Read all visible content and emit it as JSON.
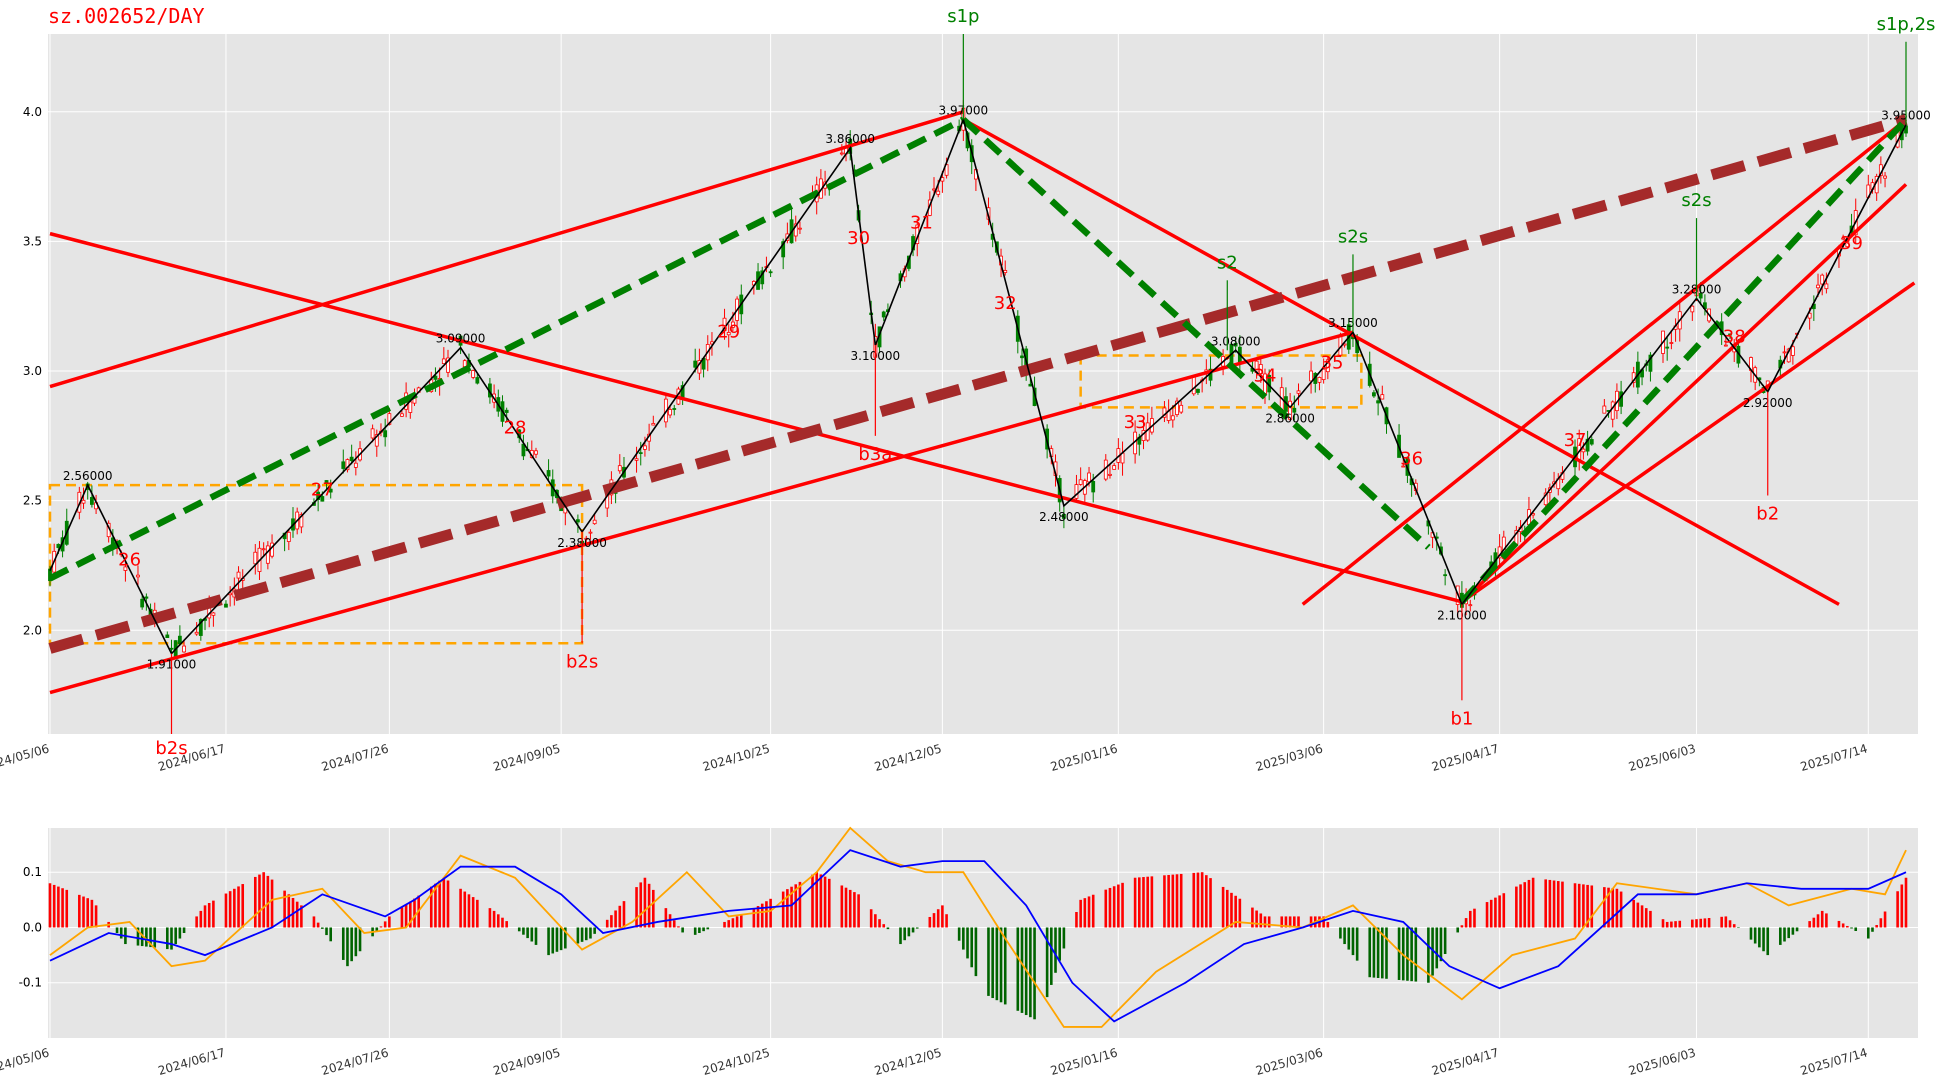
{
  "chart_data": [
    {
      "type": "candlestick",
      "title": "sz.002652/DAY",
      "ylim": [
        1.6,
        4.3
      ],
      "y_ticks": [
        "2.0",
        "2.5",
        "3.0",
        "3.5",
        "4.0"
      ],
      "x_range": [
        "2024/05/06",
        "2025/07/23"
      ],
      "x_ticks": [
        "2024/05/06",
        "2024/06/17",
        "2024/07/26",
        "2024/09/05",
        "2024/10/25",
        "2024/12/05",
        "2025/01/16",
        "2025/03/06",
        "2025/04/17",
        "2025/06/03",
        "2025/07/14"
      ],
      "grid": true,
      "pivots": [
        {
          "date": "2024/05/06",
          "price": 2.23,
          "label": ""
        },
        {
          "date": "2024/05/15",
          "price": 2.56,
          "label": "2.56000"
        },
        {
          "date": "2024/06/04",
          "price": 1.91,
          "label": "1.91000"
        },
        {
          "date": "2024/08/12",
          "price": 3.09,
          "label": "3.09000"
        },
        {
          "date": "2024/09/10",
          "price": 2.38,
          "label": "2.38000"
        },
        {
          "date": "2024/11/13",
          "price": 3.86,
          "label": "3.86000"
        },
        {
          "date": "2024/11/19",
          "price": 3.1,
          "label": "3.10000"
        },
        {
          "date": "2024/12/10",
          "price": 3.97,
          "label": "3.97000"
        },
        {
          "date": "2025/01/03",
          "price": 2.48,
          "label": "2.48000"
        },
        {
          "date": "2025/02/13",
          "price": 3.08,
          "label": "3.08000"
        },
        {
          "date": "2025/02/26",
          "price": 2.86,
          "label": "2.86000"
        },
        {
          "date": "2025/03/13",
          "price": 3.15,
          "label": "3.15000"
        },
        {
          "date": "2025/04/08",
          "price": 2.1,
          "label": "2.10000"
        },
        {
          "date": "2025/06/03",
          "price": 3.28,
          "label": "3.28000"
        },
        {
          "date": "2025/06/20",
          "price": 2.92,
          "label": "2.92000"
        },
        {
          "date": "2025/07/23",
          "price": 3.95,
          "label": "3.95000"
        }
      ],
      "signals": [
        {
          "label": "b2s",
          "date": "2024/06/04",
          "price": 1.6,
          "color": "#ff0000",
          "side": "below"
        },
        {
          "label": "b2s",
          "date": "2024/09/10",
          "price": 1.95,
          "color": "#ff0000",
          "side": "below"
        },
        {
          "label": "b3a",
          "date": "2024/11/19",
          "price": 2.75,
          "color": "#ff0000",
          "side": "below"
        },
        {
          "label": "b1",
          "date": "2025/04/08",
          "price": 1.73,
          "color": "#ff0000",
          "side": "below"
        },
        {
          "label": "b2",
          "date": "2025/06/20",
          "price": 2.52,
          "color": "#ff0000",
          "side": "below"
        },
        {
          "label": "s1p",
          "date": "2024/12/10",
          "price": 4.3,
          "color": "#008000",
          "side": "above"
        },
        {
          "label": "s2",
          "date": "2025/02/11",
          "price": 3.35,
          "color": "#008000",
          "side": "above"
        },
        {
          "label": "s2s",
          "date": "2025/03/13",
          "price": 3.45,
          "color": "#008000",
          "side": "above"
        },
        {
          "label": "s2s",
          "date": "2025/06/03",
          "price": 3.59,
          "color": "#008000",
          "side": "above"
        },
        {
          "label": "s1p,2s",
          "date": "2025/07/23",
          "price": 4.27,
          "color": "#008000",
          "side": "above"
        }
      ],
      "stroke_numbers": [
        {
          "label": "26",
          "date": "2024/05/25",
          "price": 2.25
        },
        {
          "label": "27",
          "date": "2024/07/10",
          "price": 2.52
        },
        {
          "label": "28",
          "date": "2024/08/25",
          "price": 2.76
        },
        {
          "label": "29",
          "date": "2024/10/15",
          "price": 3.13
        },
        {
          "label": "30",
          "date": "2024/11/15",
          "price": 3.49
        },
        {
          "label": "31",
          "date": "2024/11/30",
          "price": 3.55
        },
        {
          "label": "32",
          "date": "2024/12/20",
          "price": 3.24
        },
        {
          "label": "33",
          "date": "2025/01/20",
          "price": 2.78
        },
        {
          "label": "34",
          "date": "2025/02/20",
          "price": 2.96
        },
        {
          "label": "35",
          "date": "2025/03/08",
          "price": 3.01
        },
        {
          "label": "36",
          "date": "2025/03/27",
          "price": 2.64
        },
        {
          "label": "37",
          "date": "2025/05/05",
          "price": 2.71
        },
        {
          "label": "38",
          "date": "2025/06/12",
          "price": 3.11
        },
        {
          "label": "39",
          "date": "2025/07/10",
          "price": 3.47
        }
      ],
      "trend_lines": [
        {
          "from": [
            "2024/05/06",
            2.94
          ],
          "to": [
            "2024/12/10",
            4.0
          ],
          "color": "#ff0000",
          "style": "solid"
        },
        {
          "from": [
            "2024/05/06",
            3.53
          ],
          "to": [
            "2025/04/08",
            2.11
          ],
          "color": "#ff0000",
          "style": "solid"
        },
        {
          "from": [
            "2024/05/06",
            1.76
          ],
          "to": [
            "2025/03/13",
            3.15
          ],
          "color": "#ff0000",
          "style": "solid"
        },
        {
          "from": [
            "2024/12/10",
            3.97
          ],
          "to": [
            "2025/07/07",
            2.1
          ],
          "color": "#ff0000",
          "style": "solid"
        },
        {
          "from": [
            "2025/03/01",
            2.1
          ],
          "to": [
            "2025/07/23",
            3.97
          ],
          "color": "#ff0000",
          "style": "solid"
        },
        {
          "from": [
            "2025/04/08",
            2.11
          ],
          "to": [
            "2025/07/23",
            3.72
          ],
          "color": "#ff0000",
          "style": "solid"
        },
        {
          "from": [
            "2025/04/08",
            2.11
          ],
          "to": [
            "2025/07/25",
            3.34
          ],
          "color": "#ff0000",
          "style": "solid"
        },
        {
          "from": [
            "2024/05/06",
            1.93
          ],
          "to": [
            "2025/07/23",
            3.97
          ],
          "color": "#a52a2a",
          "style": "thick-dash"
        },
        {
          "from": [
            "2024/05/06",
            2.2
          ],
          "to": [
            "2024/12/10",
            3.97
          ],
          "color": "#008000",
          "style": "dash"
        },
        {
          "from": [
            "2024/12/10",
            3.97
          ],
          "to": [
            "2025/03/31",
            2.32
          ],
          "color": "#008000",
          "style": "dash"
        },
        {
          "from": [
            "2025/04/08",
            2.11
          ],
          "to": [
            "2025/07/23",
            3.97
          ],
          "color": "#008000",
          "style": "dash"
        },
        {
          "from": [
            "2025/06/20",
            2.92
          ],
          "to": [
            "2025/07/23",
            3.95
          ],
          "color": "#000000",
          "style": "thin-dash"
        }
      ],
      "zones": [
        {
          "from": [
            "2024/05/06",
            2.56
          ],
          "to": [
            "2024/09/10",
            1.95
          ],
          "color": "#ffa500"
        },
        {
          "from": [
            "2025/01/07",
            3.06
          ],
          "to": [
            "2025/03/15",
            2.86
          ],
          "color": "#ffa500"
        }
      ]
    },
    {
      "type": "macd",
      "ylim": [
        -0.2,
        0.18
      ],
      "y_ticks": [
        "-0.1",
        "0.0",
        "0.1"
      ],
      "x_ticks": [
        "2024/05/06",
        "2024/06/17",
        "2024/07/26",
        "2024/09/05",
        "2024/10/25",
        "2024/12/05",
        "2025/01/16",
        "2025/03/06",
        "2025/04/17",
        "2025/06/03",
        "2025/07/14"
      ],
      "dif_color": "#ffa500",
      "dea_color": "#0000ff",
      "hist_up_color": "#ff0000",
      "hist_down_color": "#006400",
      "dif": [
        [
          "2024/05/06",
          -0.05
        ],
        [
          "2024/05/15",
          0.0
        ],
        [
          "2024/05/25",
          0.01
        ],
        [
          "2024/06/04",
          -0.07
        ],
        [
          "2024/06/12",
          -0.06
        ],
        [
          "2024/06/28",
          0.05
        ],
        [
          "2024/07/10",
          0.07
        ],
        [
          "2024/07/20",
          -0.01
        ],
        [
          "2024/07/30",
          0.0
        ],
        [
          "2024/08/12",
          0.13
        ],
        [
          "2024/08/25",
          0.09
        ],
        [
          "2024/09/10",
          -0.04
        ],
        [
          "2024/09/22",
          0.01
        ],
        [
          "2024/10/05",
          0.1
        ],
        [
          "2024/10/15",
          0.02
        ],
        [
          "2024/10/25",
          0.03
        ],
        [
          "2024/11/05",
          0.1
        ],
        [
          "2024/11/13",
          0.18
        ],
        [
          "2024/11/22",
          0.12
        ],
        [
          "2024/12/01",
          0.1
        ],
        [
          "2024/12/10",
          0.1
        ],
        [
          "2024/12/20",
          -0.02
        ],
        [
          "2025/01/03",
          -0.18
        ],
        [
          "2025/01/12",
          -0.18
        ],
        [
          "2025/01/25",
          -0.08
        ],
        [
          "2025/02/13",
          0.01
        ],
        [
          "2025/03/01",
          0.0
        ],
        [
          "2025/03/13",
          0.04
        ],
        [
          "2025/03/25",
          -0.05
        ],
        [
          "2025/04/08",
          -0.13
        ],
        [
          "2025/04/20",
          -0.05
        ],
        [
          "2025/05/05",
          -0.02
        ],
        [
          "2025/05/15",
          0.08
        ],
        [
          "2025/06/03",
          0.06
        ],
        [
          "2025/06/15",
          0.08
        ],
        [
          "2025/06/25",
          0.04
        ],
        [
          "2025/07/10",
          0.07
        ],
        [
          "2025/07/18",
          0.06
        ],
        [
          "2025/07/23",
          0.14
        ]
      ],
      "dea": [
        [
          "2024/05/06",
          -0.06
        ],
        [
          "2024/05/20",
          -0.01
        ],
        [
          "2024/06/04",
          -0.03
        ],
        [
          "2024/06/12",
          -0.05
        ],
        [
          "2024/06/28",
          0.0
        ],
        [
          "2024/07/10",
          0.06
        ],
        [
          "2024/07/25",
          0.02
        ],
        [
          "2024/08/01",
          0.05
        ],
        [
          "2024/08/12",
          0.11
        ],
        [
          "2024/08/25",
          0.11
        ],
        [
          "2024/09/05",
          0.06
        ],
        [
          "2024/09/15",
          -0.01
        ],
        [
          "2024/09/28",
          0.01
        ],
        [
          "2024/10/15",
          0.03
        ],
        [
          "2024/10/30",
          0.04
        ],
        [
          "2024/11/13",
          0.14
        ],
        [
          "2024/11/25",
          0.11
        ],
        [
          "2024/12/05",
          0.12
        ],
        [
          "2024/12/15",
          0.12
        ],
        [
          "2024/12/25",
          0.04
        ],
        [
          "2025/01/05",
          -0.1
        ],
        [
          "2025/01/15",
          -0.17
        ],
        [
          "2025/02/01",
          -0.1
        ],
        [
          "2025/02/15",
          -0.03
        ],
        [
          "2025/03/01",
          0.0
        ],
        [
          "2025/03/13",
          0.03
        ],
        [
          "2025/03/25",
          0.01
        ],
        [
          "2025/04/05",
          -0.07
        ],
        [
          "2025/04/17",
          -0.11
        ],
        [
          "2025/05/01",
          -0.07
        ],
        [
          "2025/05/20",
          0.06
        ],
        [
          "2025/06/03",
          0.06
        ],
        [
          "2025/06/15",
          0.08
        ],
        [
          "2025/06/28",
          0.07
        ],
        [
          "2025/07/14",
          0.07
        ],
        [
          "2025/07/23",
          0.1
        ]
      ],
      "hist": [
        [
          "2024/05/06",
          0.08
        ],
        [
          "2024/05/16",
          0.05
        ],
        [
          "2024/05/24",
          -0.03
        ],
        [
          "2024/06/04",
          -0.04
        ],
        [
          "2024/06/12",
          0.04
        ],
        [
          "2024/06/26",
          0.1
        ],
        [
          "2024/07/08",
          0.02
        ],
        [
          "2024/07/16",
          -0.07
        ],
        [
          "2024/07/26",
          0.02
        ],
        [
          "2024/08/08",
          0.09
        ],
        [
          "2024/08/20",
          0.03
        ],
        [
          "2024/09/02",
          -0.05
        ],
        [
          "2024/09/12",
          -0.02
        ],
        [
          "2024/09/25",
          0.09
        ],
        [
          "2024/10/05",
          -0.02
        ],
        [
          "2024/10/20",
          0.03
        ],
        [
          "2024/11/05",
          0.1
        ],
        [
          "2024/11/15",
          0.06
        ],
        [
          "2024/11/25",
          -0.03
        ],
        [
          "2024/12/05",
          0.04
        ],
        [
          "2024/12/15",
          -0.12
        ],
        [
          "2024/12/28",
          -0.17
        ],
        [
          "2025/01/07",
          0.05
        ],
        [
          "2025/01/20",
          0.09
        ],
        [
          "2025/02/05",
          0.1
        ],
        [
          "2025/02/20",
          0.02
        ],
        [
          "2025/03/06",
          0.02
        ],
        [
          "2025/03/17",
          -0.09
        ],
        [
          "2025/03/31",
          -0.1
        ],
        [
          "2025/04/10",
          0.03
        ],
        [
          "2025/04/25",
          0.09
        ],
        [
          "2025/05/15",
          0.07
        ],
        [
          "2025/05/27",
          0.01
        ],
        [
          "2025/06/10",
          0.02
        ],
        [
          "2025/06/20",
          -0.05
        ],
        [
          "2025/07/03",
          0.03
        ],
        [
          "2025/07/14",
          -0.02
        ],
        [
          "2025/07/23",
          0.09
        ]
      ]
    }
  ]
}
